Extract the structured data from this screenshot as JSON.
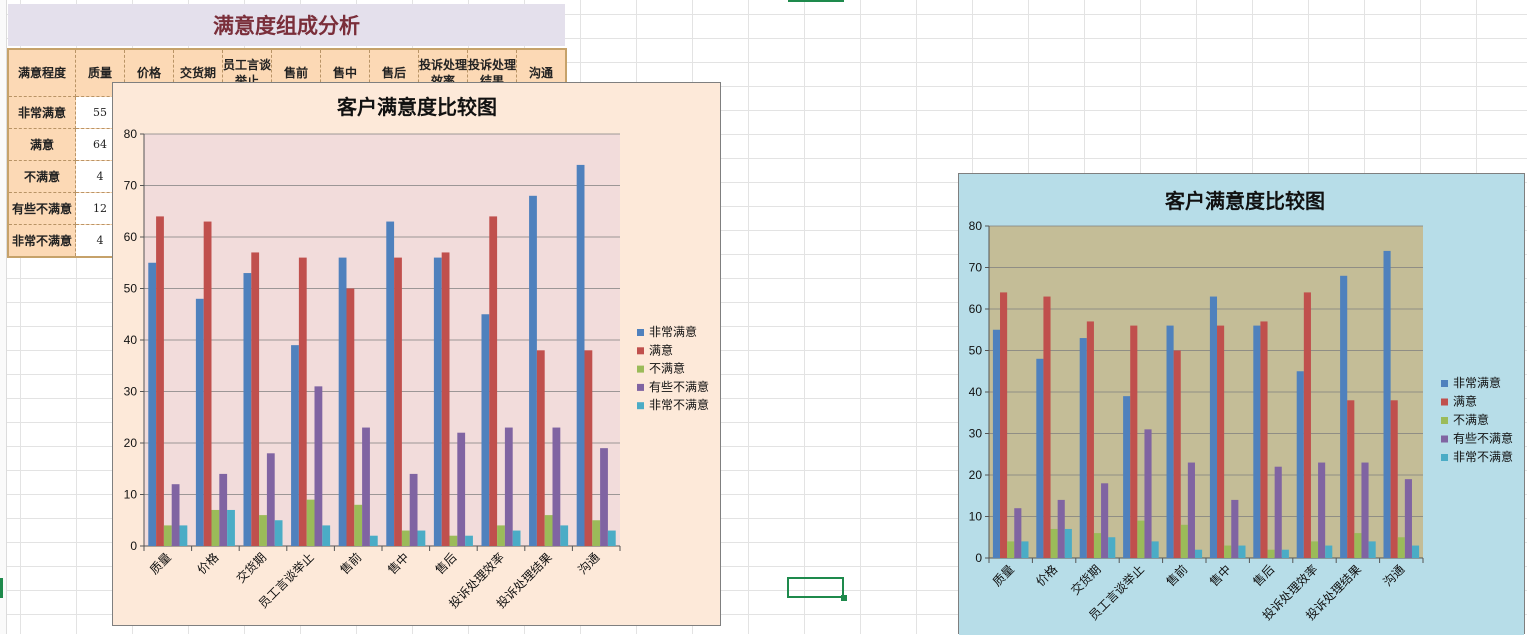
{
  "sheet": {
    "title": "满意度组成分析",
    "table_headers": [
      "满意程度",
      "质量",
      "价格",
      "交货期",
      "员工言谈举止",
      "售前",
      "售中",
      "售后",
      "投诉处理效率",
      "投诉处理结果",
      "沟通"
    ],
    "rows": [
      {
        "label": "非常满意",
        "first_value": "55"
      },
      {
        "label": "满意",
        "first_value": "64"
      },
      {
        "label": "不满意",
        "first_value": "4"
      },
      {
        "label": "有些不满意",
        "first_value": "12"
      },
      {
        "label": "非常不满意",
        "first_value": "4"
      }
    ]
  },
  "colors": {
    "chart1_bg": "#fde9d9",
    "chart1_plot": "#f2dcdb",
    "chart2_bg": "#b7dde8",
    "chart2_plot": "#c4bd97",
    "series": [
      "#4f81bd",
      "#c0504d",
      "#9bbb59",
      "#8064a2",
      "#4bacc6"
    ]
  },
  "chart_data": [
    {
      "type": "bar",
      "title": "客户满意度比较图",
      "categories": [
        "质量",
        "价格",
        "交货期",
        "员工言谈举止",
        "售前",
        "售中",
        "售后",
        "投诉处理效率",
        "投诉处理结果",
        "沟通"
      ],
      "series": [
        {
          "name": "非常满意",
          "values": [
            55,
            48,
            53,
            39,
            56,
            63,
            56,
            45,
            68,
            74
          ]
        },
        {
          "name": "满意",
          "values": [
            64,
            63,
            57,
            56,
            50,
            56,
            57,
            64,
            38,
            38
          ]
        },
        {
          "name": "不满意",
          "values": [
            4,
            7,
            6,
            9,
            8,
            3,
            2,
            4,
            6,
            5
          ]
        },
        {
          "name": "有些不满意",
          "values": [
            12,
            14,
            18,
            31,
            23,
            14,
            22,
            23,
            23,
            19
          ]
        },
        {
          "name": "非常不满意",
          "values": [
            4,
            7,
            5,
            4,
            2,
            3,
            2,
            3,
            4,
            3
          ]
        }
      ],
      "ylim": [
        0,
        80
      ],
      "yticks": [
        0,
        10,
        20,
        30,
        40,
        50,
        60,
        70,
        80
      ],
      "grid": true,
      "legend": "right"
    },
    {
      "type": "bar",
      "title": "客户满意度比较图",
      "categories": [
        "质量",
        "价格",
        "交货期",
        "员工言谈举止",
        "售前",
        "售中",
        "售后",
        "投诉处理效率",
        "投诉处理结果",
        "沟通"
      ],
      "series": [
        {
          "name": "非常满意",
          "values": [
            55,
            48,
            53,
            39,
            56,
            63,
            56,
            45,
            68,
            74
          ]
        },
        {
          "name": "满意",
          "values": [
            64,
            63,
            57,
            56,
            50,
            56,
            57,
            64,
            38,
            38
          ]
        },
        {
          "name": "不满意",
          "values": [
            4,
            7,
            6,
            9,
            8,
            3,
            2,
            4,
            6,
            5
          ]
        },
        {
          "name": "有些不满意",
          "values": [
            12,
            14,
            18,
            31,
            23,
            14,
            22,
            23,
            23,
            19
          ]
        },
        {
          "name": "非常不满意",
          "values": [
            4,
            7,
            5,
            4,
            2,
            3,
            2,
            3,
            4,
            3
          ]
        }
      ],
      "ylim": [
        0,
        80
      ],
      "yticks": [
        0,
        10,
        20,
        30,
        40,
        50,
        60,
        70,
        80
      ],
      "grid": true,
      "legend": "right"
    }
  ]
}
